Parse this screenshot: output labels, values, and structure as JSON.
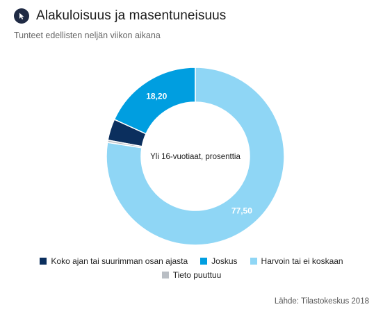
{
  "header": {
    "title": "Alakuloisuus ja masentuneisuus",
    "subtitle": "Tunteet edellisten neljän viikon aikana",
    "logo_icon": "cursor-arrow-icon"
  },
  "chart_data": {
    "type": "pie",
    "variant": "donut",
    "center_label": "Yli 16-vuotiaat, prosenttia",
    "categories": [
      "Koko ajan tai suurimman osan ajasta",
      "Joskus",
      "Harvoin tai ei koskaan",
      "Tieto puuttuu"
    ],
    "values": [
      3.9,
      18.2,
      77.5,
      0.4
    ],
    "data_labels": [
      "",
      "18,20",
      "77,50",
      ""
    ],
    "colors": [
      "#0b2f5e",
      "#009ee0",
      "#8fd6f5",
      "#b9bec4"
    ],
    "legend_position": "bottom"
  },
  "source": "Lähde: Tilastokeskus 2018"
}
